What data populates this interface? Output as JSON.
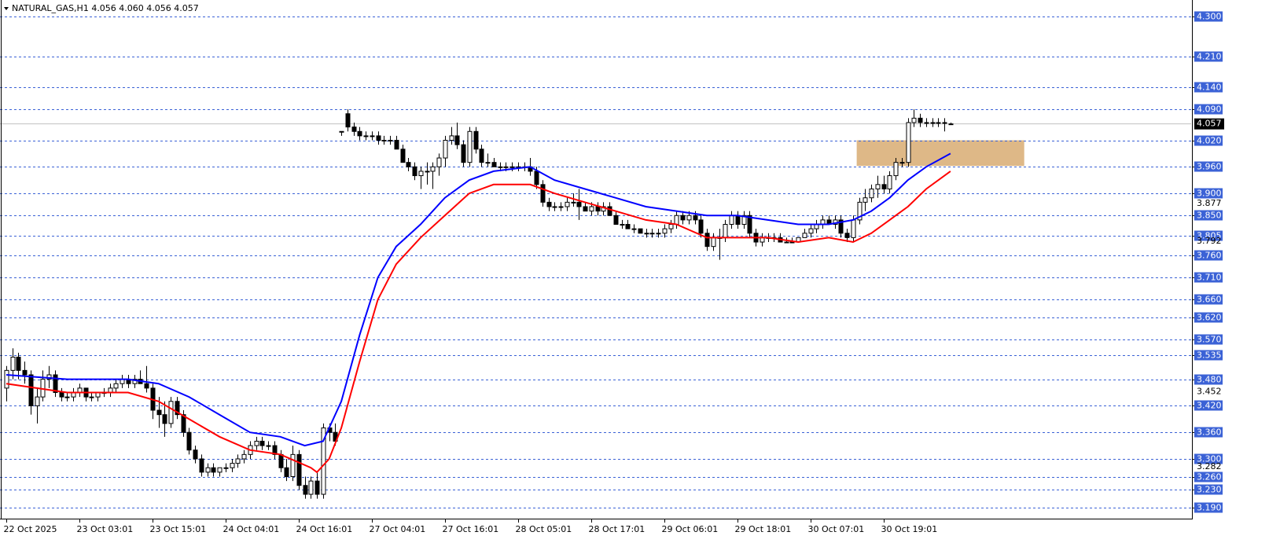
{
  "chart_data": {
    "type": "candlestick",
    "title": "NATURAL_GAS,H1  4.056 4.060 4.056 4.057",
    "xlim": [
      -1.03,
      194.5
    ],
    "ylim": [
      3.165,
      4.337
    ],
    "grid": true,
    "bull_color": "#ffffff",
    "bear_color": "#000000",
    "grid_color": "#3b62d6",
    "xticks": [
      {
        "value": 0,
        "label": "22 Oct 2025"
      },
      {
        "value": 12,
        "label": "23 Oct 03:01"
      },
      {
        "value": 24,
        "label": "23 Oct 15:01"
      },
      {
        "value": 36,
        "label": "24 Oct 04:01"
      },
      {
        "value": 48,
        "label": "24 Oct 16:01"
      },
      {
        "value": 60,
        "label": "27 Oct 04:01"
      },
      {
        "value": 72,
        "label": "27 Oct 16:01"
      },
      {
        "value": 84,
        "label": "28 Oct 05:01"
      },
      {
        "value": 96,
        "label": "28 Oct 17:01"
      },
      {
        "value": 108,
        "label": "29 Oct 06:01"
      },
      {
        "value": 120,
        "label": "29 Oct 18:01"
      },
      {
        "value": 132,
        "label": "30 Oct 07:01"
      },
      {
        "value": 144,
        "label": "30 Oct 19:01"
      }
    ],
    "yticks": [
      {
        "value": 4.3,
        "label": "4.300"
      },
      {
        "value": 4.21,
        "label": "4.210"
      },
      {
        "value": 4.14,
        "label": "4.140"
      },
      {
        "value": 4.09,
        "label": "4.090"
      },
      {
        "value": 4.02,
        "label": "4.020"
      },
      {
        "value": 3.96,
        "label": "3.960"
      },
      {
        "value": 3.9,
        "label": "3.900"
      },
      {
        "value": 3.85,
        "label": "3.850"
      },
      {
        "value": 3.805,
        "label": "3.805"
      },
      {
        "value": 3.76,
        "label": "3.760"
      },
      {
        "value": 3.71,
        "label": "3.710"
      },
      {
        "value": 3.66,
        "label": "3.660"
      },
      {
        "value": 3.62,
        "label": "3.620"
      },
      {
        "value": 3.57,
        "label": "3.570"
      },
      {
        "value": 3.535,
        "label": "3.535"
      },
      {
        "value": 3.48,
        "label": "3.480"
      },
      {
        "value": 3.42,
        "label": "3.420"
      },
      {
        "value": 3.36,
        "label": "3.360"
      },
      {
        "value": 3.3,
        "label": "3.300"
      },
      {
        "value": 3.26,
        "label": "3.260"
      },
      {
        "value": 3.23,
        "label": "3.230"
      },
      {
        "value": 3.19,
        "label": "3.190"
      }
    ],
    "axis_markers": [
      3.877,
      3.792,
      3.452,
      3.282
    ],
    "last_price": 4.057,
    "zone": {
      "x": [
        139.6,
        167.1
      ],
      "y": [
        3.962,
        4.02
      ],
      "color": "#deb887"
    },
    "ohlc": [
      [
        3.46,
        3.51,
        3.43,
        3.5
      ],
      [
        3.5,
        3.55,
        3.48,
        3.53
      ],
      [
        3.53,
        3.54,
        3.48,
        3.5
      ],
      [
        3.5,
        3.52,
        3.47,
        3.49
      ],
      [
        3.49,
        3.5,
        3.4,
        3.42
      ],
      [
        3.42,
        3.46,
        3.38,
        3.44
      ],
      [
        3.44,
        3.5,
        3.43,
        3.48
      ],
      [
        3.48,
        3.51,
        3.46,
        3.49
      ],
      [
        3.49,
        3.5,
        3.44,
        3.45
      ],
      [
        3.45,
        3.46,
        3.43,
        3.44
      ],
      [
        3.44,
        3.45,
        3.43,
        3.44
      ],
      [
        3.44,
        3.46,
        3.43,
        3.45
      ],
      [
        3.45,
        3.47,
        3.44,
        3.46
      ],
      [
        3.46,
        3.46,
        3.43,
        3.44
      ],
      [
        3.44,
        3.45,
        3.43,
        3.44
      ],
      [
        3.44,
        3.45,
        3.43,
        3.45
      ],
      [
        3.45,
        3.46,
        3.44,
        3.45
      ],
      [
        3.45,
        3.47,
        3.44,
        3.46
      ],
      [
        3.46,
        3.48,
        3.45,
        3.47
      ],
      [
        3.47,
        3.49,
        3.46,
        3.48
      ],
      [
        3.48,
        3.49,
        3.46,
        3.47
      ],
      [
        3.47,
        3.49,
        3.46,
        3.48
      ],
      [
        3.48,
        3.5,
        3.47,
        3.47
      ],
      [
        3.47,
        3.51,
        3.45,
        3.46
      ],
      [
        3.46,
        3.47,
        3.39,
        3.41
      ],
      [
        3.41,
        3.44,
        3.37,
        3.4
      ],
      [
        3.4,
        3.43,
        3.35,
        3.38
      ],
      [
        3.38,
        3.44,
        3.37,
        3.43
      ],
      [
        3.43,
        3.44,
        3.39,
        3.4
      ],
      [
        3.4,
        3.41,
        3.35,
        3.36
      ],
      [
        3.36,
        3.37,
        3.31,
        3.32
      ],
      [
        3.32,
        3.33,
        3.29,
        3.3
      ],
      [
        3.3,
        3.31,
        3.26,
        3.27
      ],
      [
        3.27,
        3.29,
        3.26,
        3.28
      ],
      [
        3.28,
        3.29,
        3.26,
        3.27
      ],
      [
        3.27,
        3.28,
        3.26,
        3.28
      ],
      [
        3.28,
        3.29,
        3.27,
        3.28
      ],
      [
        3.28,
        3.3,
        3.27,
        3.29
      ],
      [
        3.29,
        3.31,
        3.28,
        3.3
      ],
      [
        3.3,
        3.32,
        3.29,
        3.31
      ],
      [
        3.31,
        3.34,
        3.3,
        3.33
      ],
      [
        3.33,
        3.35,
        3.32,
        3.34
      ],
      [
        3.34,
        3.35,
        3.32,
        3.33
      ],
      [
        3.33,
        3.34,
        3.32,
        3.33
      ],
      [
        3.33,
        3.34,
        3.3,
        3.31
      ],
      [
        3.31,
        3.32,
        3.27,
        3.28
      ],
      [
        3.28,
        3.3,
        3.25,
        3.26
      ],
      [
        3.26,
        3.33,
        3.25,
        3.31
      ],
      [
        3.31,
        3.32,
        3.23,
        3.24
      ],
      [
        3.24,
        3.26,
        3.21,
        3.22
      ],
      [
        3.22,
        3.26,
        3.21,
        3.25
      ],
      [
        3.25,
        3.27,
        3.21,
        3.22
      ],
      [
        3.22,
        3.38,
        3.21,
        3.37
      ],
      [
        3.37,
        3.38,
        3.34,
        3.36
      ],
      [
        3.36,
        3.38,
        3.33,
        3.34
      ],
      [
        4.04,
        4.04,
        4.03,
        4.04
      ],
      [
        4.08,
        4.09,
        4.04,
        4.05
      ],
      [
        4.05,
        4.06,
        4.03,
        4.04
      ],
      [
        4.04,
        4.05,
        4.02,
        4.03
      ],
      [
        4.03,
        4.04,
        4.02,
        4.03
      ],
      [
        4.03,
        4.04,
        4.02,
        4.03
      ],
      [
        4.03,
        4.04,
        4.01,
        4.02
      ],
      [
        4.02,
        4.03,
        4.01,
        4.02
      ],
      [
        4.02,
        4.03,
        4.01,
        4.02
      ],
      [
        4.02,
        4.03,
        4.0,
        4.0
      ],
      [
        4.0,
        4.01,
        3.97,
        3.97
      ],
      [
        3.97,
        3.98,
        3.95,
        3.96
      ],
      [
        3.96,
        3.97,
        3.93,
        3.94
      ],
      [
        3.94,
        3.96,
        3.91,
        3.95
      ],
      [
        3.95,
        3.97,
        3.92,
        3.95
      ],
      [
        3.95,
        3.97,
        3.91,
        3.96
      ],
      [
        3.96,
        3.99,
        3.94,
        3.98
      ],
      [
        3.98,
        4.03,
        3.96,
        4.02
      ],
      [
        4.02,
        4.05,
        4.01,
        4.03
      ],
      [
        4.03,
        4.06,
        4.0,
        4.01
      ],
      [
        4.01,
        4.02,
        3.96,
        3.97
      ],
      [
        3.97,
        4.05,
        3.96,
        4.04
      ],
      [
        4.04,
        4.05,
        3.99,
        4.0
      ],
      [
        4.0,
        4.01,
        3.96,
        3.97
      ],
      [
        3.97,
        3.99,
        3.96,
        3.97
      ],
      [
        3.97,
        3.98,
        3.96,
        3.96
      ],
      [
        3.96,
        3.97,
        3.95,
        3.96
      ],
      [
        3.96,
        3.97,
        3.95,
        3.96
      ],
      [
        3.96,
        3.97,
        3.95,
        3.96
      ],
      [
        3.96,
        3.97,
        3.95,
        3.96
      ],
      [
        3.96,
        3.97,
        3.95,
        3.96
      ],
      [
        3.96,
        3.98,
        3.94,
        3.95
      ],
      [
        3.95,
        3.96,
        3.91,
        3.92
      ],
      [
        3.92,
        3.93,
        3.87,
        3.88
      ],
      [
        3.88,
        3.89,
        3.86,
        3.87
      ],
      [
        3.87,
        3.88,
        3.86,
        3.87
      ],
      [
        3.87,
        3.88,
        3.86,
        3.87
      ],
      [
        3.87,
        3.89,
        3.86,
        3.88
      ],
      [
        3.88,
        3.9,
        3.87,
        3.88
      ],
      [
        3.88,
        3.91,
        3.84,
        3.87
      ],
      [
        3.87,
        3.88,
        3.86,
        3.86
      ],
      [
        3.86,
        3.88,
        3.85,
        3.87
      ],
      [
        3.87,
        3.88,
        3.85,
        3.86
      ],
      [
        3.86,
        3.88,
        3.85,
        3.87
      ],
      [
        3.87,
        3.88,
        3.85,
        3.85
      ],
      [
        3.85,
        3.86,
        3.83,
        3.83
      ],
      [
        3.83,
        3.84,
        3.82,
        3.83
      ],
      [
        3.83,
        3.84,
        3.82,
        3.82
      ],
      [
        3.82,
        3.83,
        3.81,
        3.82
      ],
      [
        3.82,
        3.82,
        3.81,
        3.81
      ],
      [
        3.81,
        3.82,
        3.8,
        3.81
      ],
      [
        3.81,
        3.82,
        3.8,
        3.81
      ],
      [
        3.81,
        3.82,
        3.8,
        3.81
      ],
      [
        3.81,
        3.83,
        3.8,
        3.82
      ],
      [
        3.82,
        3.84,
        3.81,
        3.83
      ],
      [
        3.83,
        3.86,
        3.82,
        3.85
      ],
      [
        3.85,
        3.86,
        3.83,
        3.84
      ],
      [
        3.84,
        3.86,
        3.83,
        3.85
      ],
      [
        3.85,
        3.86,
        3.83,
        3.84
      ],
      [
        3.84,
        3.85,
        3.8,
        3.81
      ],
      [
        3.81,
        3.82,
        3.77,
        3.78
      ],
      [
        3.78,
        3.81,
        3.77,
        3.8
      ],
      [
        3.8,
        3.82,
        3.75,
        3.8
      ],
      [
        3.8,
        3.84,
        3.79,
        3.83
      ],
      [
        3.83,
        3.86,
        3.82,
        3.85
      ],
      [
        3.85,
        3.86,
        3.82,
        3.83
      ],
      [
        3.83,
        3.86,
        3.82,
        3.85
      ],
      [
        3.85,
        3.86,
        3.8,
        3.81
      ],
      [
        3.81,
        3.82,
        3.78,
        3.79
      ],
      [
        3.79,
        3.81,
        3.78,
        3.8
      ],
      [
        3.8,
        3.81,
        3.79,
        3.8
      ],
      [
        3.8,
        3.81,
        3.79,
        3.8
      ],
      [
        3.8,
        3.81,
        3.79,
        3.79
      ],
      [
        3.79,
        3.8,
        3.79,
        3.79
      ],
      [
        3.79,
        3.8,
        3.79,
        3.79
      ],
      [
        3.79,
        3.8,
        3.79,
        3.8
      ],
      [
        3.8,
        3.82,
        3.8,
        3.81
      ],
      [
        3.81,
        3.83,
        3.8,
        3.82
      ],
      [
        3.82,
        3.84,
        3.81,
        3.83
      ],
      [
        3.83,
        3.85,
        3.82,
        3.84
      ],
      [
        3.84,
        3.85,
        3.83,
        3.83
      ],
      [
        3.83,
        3.85,
        3.82,
        3.84
      ],
      [
        3.84,
        3.85,
        3.8,
        3.81
      ],
      [
        3.81,
        3.82,
        3.79,
        3.8
      ],
      [
        3.8,
        3.85,
        3.79,
        3.84
      ],
      [
        3.84,
        3.89,
        3.83,
        3.88
      ],
      [
        3.88,
        3.91,
        3.86,
        3.89
      ],
      [
        3.89,
        3.92,
        3.88,
        3.91
      ],
      [
        3.91,
        3.94,
        3.89,
        3.92
      ],
      [
        3.92,
        3.94,
        3.9,
        3.91
      ],
      [
        3.91,
        3.95,
        3.9,
        3.94
      ],
      [
        3.94,
        3.98,
        3.93,
        3.97
      ],
      [
        3.97,
        3.98,
        3.96,
        3.97
      ],
      [
        3.97,
        4.07,
        3.96,
        4.06
      ],
      [
        4.06,
        4.09,
        4.05,
        4.07
      ],
      [
        4.07,
        4.08,
        4.05,
        4.06
      ],
      [
        4.06,
        4.07,
        4.05,
        4.06
      ],
      [
        4.06,
        4.07,
        4.05,
        4.06
      ],
      [
        4.06,
        4.07,
        4.05,
        4.06
      ],
      [
        4.06,
        4.07,
        4.04,
        4.06
      ],
      [
        4.056,
        4.06,
        4.056,
        4.057
      ]
    ],
    "lines": [
      {
        "color": "#0000ff",
        "x": [
          0,
          10,
          20,
          25,
          30,
          35,
          40,
          45,
          49,
          52,
          55,
          58,
          61,
          64,
          68,
          72,
          76,
          80,
          86,
          90,
          95,
          100,
          105,
          110,
          115,
          120,
          125,
          130,
          135,
          139,
          142,
          145,
          148,
          151,
          155
        ],
        "values": [
          3.49,
          3.48,
          3.48,
          3.47,
          3.44,
          3.4,
          3.36,
          3.35,
          3.33,
          3.34,
          3.43,
          3.58,
          3.71,
          3.78,
          3.83,
          3.89,
          3.93,
          3.95,
          3.96,
          3.93,
          3.91,
          3.89,
          3.87,
          3.86,
          3.85,
          3.85,
          3.84,
          3.83,
          3.83,
          3.84,
          3.86,
          3.89,
          3.93,
          3.96,
          3.99
        ]
      },
      {
        "color": "#ff0000",
        "x": [
          0,
          10,
          20,
          25,
          30,
          35,
          40,
          45,
          50,
          51,
          53,
          55,
          58,
          61,
          64,
          68,
          72,
          76,
          80,
          86,
          90,
          95,
          100,
          105,
          110,
          115,
          120,
          125,
          130,
          135,
          139,
          142,
          145,
          148,
          151,
          155
        ],
        "values": [
          3.47,
          3.45,
          3.45,
          3.43,
          3.39,
          3.35,
          3.32,
          3.31,
          3.28,
          3.27,
          3.3,
          3.37,
          3.52,
          3.66,
          3.74,
          3.8,
          3.85,
          3.9,
          3.92,
          3.92,
          3.9,
          3.88,
          3.86,
          3.84,
          3.83,
          3.8,
          3.8,
          3.8,
          3.79,
          3.8,
          3.79,
          3.81,
          3.84,
          3.87,
          3.91,
          3.95
        ]
      }
    ]
  }
}
